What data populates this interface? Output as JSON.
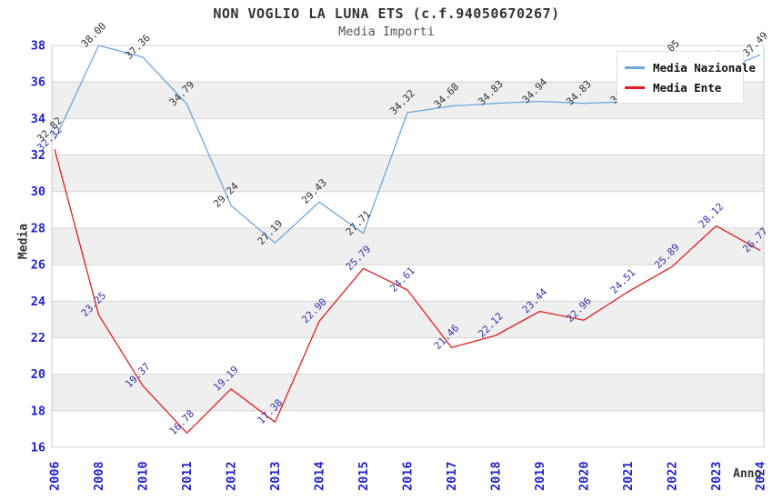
{
  "chart": {
    "title": "NON VOGLIO LA LUNA ETS (c.f.94050670267)",
    "subtitle": "Media Importi"
  },
  "chart_data": {
    "type": "line",
    "title": "NON VOGLIO LA LUNA ETS (c.f.94050670267)",
    "subtitle": "Media Importi",
    "xlabel": "Anno",
    "ylabel": "Media",
    "categories": [
      "2006",
      "2008",
      "2010",
      "2011",
      "2012",
      "2013",
      "2014",
      "2015",
      "2016",
      "2017",
      "2018",
      "2019",
      "2020",
      "2021",
      "2022",
      "2023",
      "2024"
    ],
    "series": [
      {
        "name": "Media Nazionale",
        "color": "#6ea6e0",
        "label_color": "#333333",
        "values": [
          32.82,
          38.0,
          37.36,
          34.79,
          29.24,
          27.19,
          29.43,
          27.71,
          34.32,
          34.68,
          34.83,
          34.94,
          34.83,
          34.92,
          37.05,
          36.49,
          37.49
        ]
      },
      {
        "name": "Media Ente",
        "color": "#dd2020",
        "label_color": "#3333aa",
        "values": [
          32.32,
          23.25,
          19.37,
          16.78,
          19.19,
          17.38,
          22.9,
          25.79,
          24.61,
          21.46,
          22.12,
          23.44,
          22.96,
          24.51,
          25.89,
          28.12,
          26.77
        ]
      }
    ],
    "ylim": [
      16,
      38
    ],
    "ytick_step": 2,
    "grid": true,
    "legend_position": "top-right",
    "colors": {
      "tick_label": "#2323cc",
      "grid_line": "#d4d4d4",
      "band_fill": "#efefef",
      "plot_border": "#c8c8c8"
    }
  }
}
